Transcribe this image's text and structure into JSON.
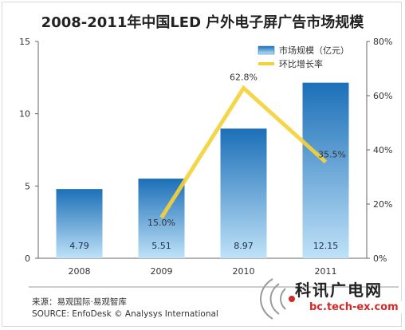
{
  "chart_data": {
    "type": "bar",
    "title": "2008-2011年中国LED 户外电子屏广告市场规模",
    "categories": [
      "2008",
      "2009",
      "2010",
      "2011"
    ],
    "series": [
      {
        "name": "市场规模（亿元）",
        "type": "bar",
        "axis": "left",
        "values": [
          4.79,
          5.51,
          8.97,
          12.15
        ],
        "data_labels": [
          "4.79",
          "5.51",
          "8.97",
          "12.15"
        ]
      },
      {
        "name": "环比增长率",
        "type": "line",
        "axis": "right",
        "values": [
          null,
          15.0,
          62.8,
          35.5
        ],
        "data_labels": [
          "",
          "15.0%",
          "62.8%",
          "35.5%"
        ]
      }
    ],
    "y_left": {
      "min": 0,
      "max": 15,
      "ticks": [
        "0",
        "5",
        "10",
        "15"
      ],
      "tick_values": [
        0,
        5,
        10,
        15
      ]
    },
    "y_right": {
      "min": 0,
      "max": 80,
      "ticks": [
        "0%",
        "20%",
        "40%",
        "60%",
        "80%"
      ],
      "tick_values": [
        0,
        20,
        40,
        60,
        80
      ]
    },
    "grid": false,
    "legend": "top-right",
    "colors": {
      "bar_top": "#1c6fb8",
      "bar_bottom": "#bfe2f8",
      "line": "#f4d13a",
      "axis": "#666666"
    }
  },
  "footer": {
    "source_cn": "来源：易观国际·易观智库",
    "source_en": "SOURCE: EnfoDesk © Analysys International"
  },
  "watermark": {
    "line1": "科讯广电网",
    "line2": "bc.tech-ex.com"
  }
}
